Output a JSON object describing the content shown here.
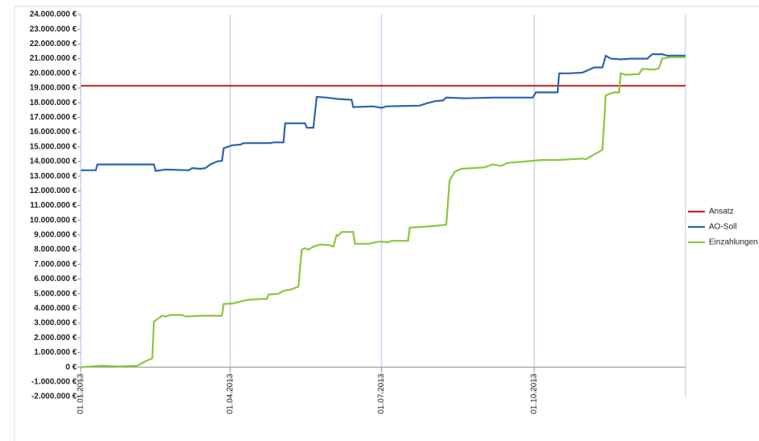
{
  "chart_data": {
    "type": "line",
    "xlim": [
      "2013-01-01",
      "2013-12-31"
    ],
    "xticks": [
      {
        "value": "2013-01-01",
        "label": "01.01.2013"
      },
      {
        "value": "2013-04-01",
        "label": "01.04.2013"
      },
      {
        "value": "2013-07-01",
        "label": "01.07.2013"
      },
      {
        "value": "2013-10-01",
        "label": "01.10.2013"
      }
    ],
    "ylim": [
      -2000000,
      24000000
    ],
    "yticks": [
      {
        "value": -2000000,
        "label": "-2.000.000 €"
      },
      {
        "value": -1000000,
        "label": "-1.000.000 €"
      },
      {
        "value": 0,
        "label": "0 €"
      },
      {
        "value": 1000000,
        "label": "1.000.000 €"
      },
      {
        "value": 2000000,
        "label": "2.000.000 €"
      },
      {
        "value": 3000000,
        "label": "3.000.000 €"
      },
      {
        "value": 4000000,
        "label": "4.000.000 €"
      },
      {
        "value": 5000000,
        "label": "5.000.000 €"
      },
      {
        "value": 6000000,
        "label": "6.000.000 €"
      },
      {
        "value": 7000000,
        "label": "7.000.000 €"
      },
      {
        "value": 8000000,
        "label": "8.000.000 €"
      },
      {
        "value": 9000000,
        "label": "9.000.000 €"
      },
      {
        "value": 10000000,
        "label": "10.000.000 €"
      },
      {
        "value": 11000000,
        "label": "11.000.000 €"
      },
      {
        "value": 12000000,
        "label": "12.000.000 €"
      },
      {
        "value": 13000000,
        "label": "13.000.000 €"
      },
      {
        "value": 14000000,
        "label": "14.000.000 €"
      },
      {
        "value": 15000000,
        "label": "15.000.000 €"
      },
      {
        "value": 16000000,
        "label": "16.000.000 €"
      },
      {
        "value": 17000000,
        "label": "17.000.000 €"
      },
      {
        "value": 18000000,
        "label": "18.000.000 €"
      },
      {
        "value": 19000000,
        "label": "19.000.000 €"
      },
      {
        "value": 20000000,
        "label": "20.000.000 €"
      },
      {
        "value": 21000000,
        "label": "21.000.000 €"
      },
      {
        "value": 22000000,
        "label": "22.000.000 €"
      },
      {
        "value": 23000000,
        "label": "23.000.000 €"
      },
      {
        "value": 24000000,
        "label": "24.000.000 €"
      }
    ],
    "grid": "x",
    "legend": "right",
    "series": [
      {
        "name": "Ansatz",
        "color": "#c0282a",
        "x": [
          "2013-01-01",
          "2013-12-31"
        ],
        "values": [
          19150000,
          19150000
        ]
      },
      {
        "name": "AO-Soll",
        "color": "#2c63b0",
        "x": [
          "2013-01-01",
          "2013-01-10",
          "2013-01-11",
          "2013-02-14",
          "2013-02-15",
          "2013-02-21",
          "2013-03-07",
          "2013-03-09",
          "2013-03-14",
          "2013-03-17",
          "2013-03-20",
          "2013-03-24",
          "2013-03-27",
          "2013-03-28",
          "2013-04-02",
          "2013-04-07",
          "2013-04-09",
          "2013-04-25",
          "2013-04-27",
          "2013-05-03",
          "2013-05-04",
          "2013-05-16",
          "2013-05-17",
          "2013-05-21",
          "2013-05-23",
          "2013-05-29",
          "2013-06-05",
          "2013-06-13",
          "2013-06-14",
          "2013-06-26",
          "2013-07-01",
          "2013-07-04",
          "2013-07-24",
          "2013-07-28",
          "2013-08-02",
          "2013-08-07",
          "2013-08-09",
          "2013-08-20",
          "2013-09-06",
          "2013-09-30",
          "2013-10-02",
          "2013-10-15",
          "2013-10-16",
          "2013-10-22",
          "2013-10-30",
          "2013-11-06",
          "2013-11-11",
          "2013-11-13",
          "2013-11-16",
          "2013-11-22",
          "2013-11-28",
          "2013-12-08",
          "2013-12-11",
          "2013-12-17",
          "2013-12-20",
          "2013-12-31"
        ],
        "values": [
          13400000,
          13400000,
          13800000,
          13800000,
          13350000,
          13450000,
          13400000,
          13550000,
          13500000,
          13550000,
          13800000,
          14000000,
          14050000,
          14900000,
          15100000,
          15150000,
          15250000,
          15250000,
          15300000,
          15300000,
          16600000,
          16600000,
          16300000,
          16300000,
          18400000,
          18350000,
          18250000,
          18200000,
          17700000,
          17750000,
          17650000,
          17750000,
          17800000,
          17950000,
          18100000,
          18150000,
          18350000,
          18300000,
          18350000,
          18350000,
          18700000,
          18700000,
          20000000,
          20000000,
          20050000,
          20400000,
          20400000,
          21200000,
          21000000,
          20950000,
          21000000,
          21000000,
          21300000,
          21300000,
          21200000,
          21200000
        ]
      },
      {
        "name": "Einzahlungen",
        "color": "#8cc63e",
        "x": [
          "2013-01-01",
          "2013-01-13",
          "2013-01-24",
          "2013-02-04",
          "2013-02-09",
          "2013-02-13",
          "2013-02-14",
          "2013-02-19",
          "2013-02-21",
          "2013-02-24",
          "2013-03-03",
          "2013-03-05",
          "2013-03-15",
          "2013-03-27",
          "2013-03-28",
          "2013-04-03",
          "2013-04-08",
          "2013-04-13",
          "2013-04-23",
          "2013-04-24",
          "2013-04-30",
          "2013-05-03",
          "2013-05-08",
          "2013-05-12",
          "2013-05-14",
          "2013-05-16",
          "2013-05-18",
          "2013-05-21",
          "2013-05-25",
          "2013-05-31",
          "2013-06-02",
          "2013-06-04",
          "2013-06-05",
          "2013-06-07",
          "2013-06-14",
          "2013-06-15",
          "2013-06-23",
          "2013-06-30",
          "2013-07-05",
          "2013-07-07",
          "2013-07-17",
          "2013-07-18",
          "2013-08-01",
          "2013-08-09",
          "2013-08-11",
          "2013-08-14",
          "2013-08-18",
          "2013-09-01",
          "2013-09-06",
          "2013-09-11",
          "2013-09-15",
          "2013-09-26",
          "2013-10-05",
          "2013-10-15",
          "2013-10-30",
          "2013-11-01",
          "2013-11-05",
          "2013-11-11",
          "2013-11-13",
          "2013-11-18",
          "2013-11-21",
          "2013-11-22",
          "2013-11-25",
          "2013-12-03",
          "2013-12-05",
          "2013-12-12",
          "2013-12-15",
          "2013-12-17",
          "2013-12-22",
          "2013-12-31"
        ],
        "values": [
          0,
          100000,
          50000,
          100000,
          400000,
          600000,
          3100000,
          3500000,
          3450000,
          3550000,
          3550000,
          3450000,
          3500000,
          3500000,
          4300000,
          4350000,
          4500000,
          4600000,
          4650000,
          4950000,
          5000000,
          5200000,
          5300000,
          5500000,
          8000000,
          8100000,
          8000000,
          8200000,
          8350000,
          8300000,
          8200000,
          9000000,
          8950000,
          9200000,
          9200000,
          8400000,
          8400000,
          8550000,
          8500000,
          8600000,
          8600000,
          9500000,
          9600000,
          9700000,
          12700000,
          13300000,
          13500000,
          13600000,
          13800000,
          13700000,
          13900000,
          14000000,
          14100000,
          14100000,
          14200000,
          14150000,
          14400000,
          14800000,
          18500000,
          18700000,
          18700000,
          20000000,
          19900000,
          19950000,
          20300000,
          20250000,
          20350000,
          21000000,
          21100000,
          21100000
        ]
      }
    ]
  }
}
